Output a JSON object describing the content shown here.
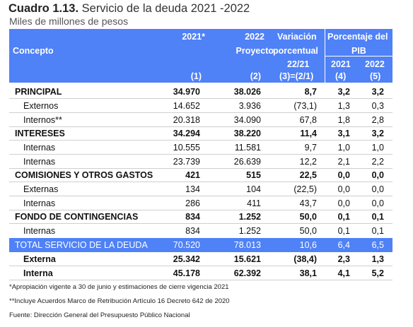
{
  "title": {
    "bold": "Cuadro 1.13.",
    "text": " Servicio de la deuda 2021 -2022"
  },
  "subtitle": "Miles de millones de pesos",
  "header": {
    "concepto": "Concepto",
    "c2021": "2021*",
    "c2022a": "2022",
    "c2022b": "Proyecto",
    "var1": "Variación",
    "var2": "porcentual",
    "var3": "22/21",
    "pib1": "Porcentaje del",
    "pib2": "PIB",
    "pib2021": "2021",
    "pib2022": "2022",
    "n1": "(1)",
    "n2": "(2)",
    "n3": "(3)=(2/1)",
    "n4": "(4)",
    "n5": "(5)"
  },
  "rows": [
    {
      "concepto": "PRINCIPAL",
      "v2021": "34.970",
      "v2022": "38.026",
      "var": "8,7",
      "p2021": "3,2",
      "p2022": "3,2"
    },
    {
      "concepto": "Externos",
      "v2021": "14.652",
      "v2022": "3.936",
      "var": "(73,1)",
      "p2021": "1,3",
      "p2022": "0,3"
    },
    {
      "concepto": "Internos**",
      "v2021": "20.318",
      "v2022": "34.090",
      "var": "67,8",
      "p2021": "1,8",
      "p2022": "2,8"
    },
    {
      "concepto": "INTERESES",
      "v2021": "34.294",
      "v2022": "38.220",
      "var": "11,4",
      "p2021": "3,1",
      "p2022": "3,2"
    },
    {
      "concepto": "Internas",
      "v2021": "10.555",
      "v2022": "11.581",
      "var": "9,7",
      "p2021": "1,0",
      "p2022": "1,0"
    },
    {
      "concepto": "Internas",
      "v2021": "23.739",
      "v2022": "26.639",
      "var": "12,2",
      "p2021": "2,1",
      "p2022": "2,2"
    },
    {
      "concepto": "COMISIONES Y OTROS GASTOS",
      "v2021": "421",
      "v2022": "515",
      "var": "22,5",
      "p2021": "0,0",
      "p2022": "0,0"
    },
    {
      "concepto": "Externas",
      "v2021": "134",
      "v2022": "104",
      "var": "(22,5)",
      "p2021": "0,0",
      "p2022": "0,0"
    },
    {
      "concepto": "Internas",
      "v2021": "286",
      "v2022": "411",
      "var": "43,7",
      "p2021": "0,0",
      "p2022": "0,0"
    },
    {
      "concepto": "FONDO DE CONTINGENCIAS",
      "v2021": "834",
      "v2022": "1.252",
      "var": "50,0",
      "p2021": "0,1",
      "p2022": "0,1"
    },
    {
      "concepto": "Internas",
      "v2021": "834",
      "v2022": "1.252",
      "var": "50,0",
      "p2021": "0,1",
      "p2022": "0,1"
    },
    {
      "concepto": "TOTAL SERVICIO DE LA DEUDA",
      "v2021": "70.520",
      "v2022": "78.013",
      "var": "10,6",
      "p2021": "6,4",
      "p2022": "6,5"
    },
    {
      "concepto": "Externa",
      "v2021": "25.342",
      "v2022": "15.621",
      "var": "(38,4)",
      "p2021": "2,3",
      "p2022": "1,3"
    },
    {
      "concepto": "Interna",
      "v2021": "45.178",
      "v2022": "62.392",
      "var": "38,1",
      "p2021": "4,1",
      "p2022": "5,2"
    }
  ],
  "notes": {
    "n1": "*Apropiación vigente a 30 de junio y estimaciones de cierre vigencia 2021",
    "n2": "**Incluye Acuerdos Marco de Retribución Artículo 16 Decreto 642 de 2020",
    "n3": "Fuente: Dirección General del Presupuesto Público Nacional"
  },
  "colors": {
    "header_bg": "#4f81f7"
  }
}
